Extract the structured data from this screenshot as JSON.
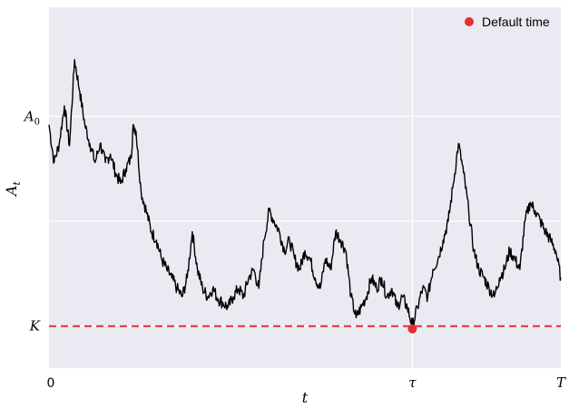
{
  "chart_data": {
    "type": "line",
    "xlabel": "t",
    "ylabel_main": "A",
    "ylabel_sub": "t",
    "x_ticks": [
      {
        "label": "0",
        "value": 0.0
      },
      {
        "label": "τ",
        "value": 0.71
      },
      {
        "label": "T",
        "value": 1.0
      }
    ],
    "y_ticks": [
      {
        "label_main": "A",
        "label_sub": "0",
        "value": 1.0
      },
      {
        "label_main": "K",
        "label_sub": "",
        "value": 0.0
      }
    ],
    "xlim": [
      0.0,
      1.0
    ],
    "ylim": [
      -0.2,
      1.52
    ],
    "grid": true,
    "legend_placement": "top-right",
    "threshold": {
      "value": 0.0,
      "color": "#e03030",
      "style": "dashed"
    },
    "default_point": {
      "x": 0.71,
      "y": 0.0,
      "color": "#e03030"
    },
    "legend": [
      {
        "label": "Default time",
        "color": "#e03030"
      }
    ],
    "series": [
      {
        "color": "#000000",
        "points": [
          [
            0.0,
            0.96
          ],
          [
            0.01,
            0.78
          ],
          [
            0.02,
            0.87
          ],
          [
            0.03,
            1.05
          ],
          [
            0.04,
            0.86
          ],
          [
            0.05,
            1.27
          ],
          [
            0.06,
            1.12
          ],
          [
            0.07,
            0.96
          ],
          [
            0.08,
            0.87
          ],
          [
            0.09,
            0.78
          ],
          [
            0.1,
            0.87
          ],
          [
            0.11,
            0.78
          ],
          [
            0.12,
            0.82
          ],
          [
            0.13,
            0.73
          ],
          [
            0.14,
            0.68
          ],
          [
            0.15,
            0.75
          ],
          [
            0.16,
            0.8
          ],
          [
            0.165,
            0.96
          ],
          [
            0.17,
            0.93
          ],
          [
            0.18,
            0.64
          ],
          [
            0.19,
            0.55
          ],
          [
            0.2,
            0.45
          ],
          [
            0.21,
            0.41
          ],
          [
            0.22,
            0.32
          ],
          [
            0.23,
            0.27
          ],
          [
            0.24,
            0.23
          ],
          [
            0.25,
            0.18
          ],
          [
            0.26,
            0.14
          ],
          [
            0.27,
            0.23
          ],
          [
            0.28,
            0.45
          ],
          [
            0.29,
            0.27
          ],
          [
            0.3,
            0.18
          ],
          [
            0.31,
            0.14
          ],
          [
            0.32,
            0.18
          ],
          [
            0.33,
            0.13
          ],
          [
            0.34,
            0.11
          ],
          [
            0.35,
            0.09
          ],
          [
            0.36,
            0.14
          ],
          [
            0.37,
            0.18
          ],
          [
            0.38,
            0.14
          ],
          [
            0.39,
            0.23
          ],
          [
            0.4,
            0.27
          ],
          [
            0.41,
            0.18
          ],
          [
            0.42,
            0.41
          ],
          [
            0.43,
            0.55
          ],
          [
            0.44,
            0.5
          ],
          [
            0.45,
            0.45
          ],
          [
            0.46,
            0.36
          ],
          [
            0.47,
            0.41
          ],
          [
            0.48,
            0.32
          ],
          [
            0.49,
            0.27
          ],
          [
            0.5,
            0.36
          ],
          [
            0.51,
            0.32
          ],
          [
            0.52,
            0.23
          ],
          [
            0.53,
            0.18
          ],
          [
            0.54,
            0.32
          ],
          [
            0.55,
            0.27
          ],
          [
            0.56,
            0.45
          ],
          [
            0.57,
            0.41
          ],
          [
            0.58,
            0.36
          ],
          [
            0.59,
            0.14
          ],
          [
            0.6,
            0.04
          ],
          [
            0.61,
            0.09
          ],
          [
            0.62,
            0.14
          ],
          [
            0.63,
            0.23
          ],
          [
            0.64,
            0.18
          ],
          [
            0.65,
            0.23
          ],
          [
            0.66,
            0.14
          ],
          [
            0.67,
            0.18
          ],
          [
            0.68,
            0.09
          ],
          [
            0.69,
            0.14
          ],
          [
            0.7,
            0.09
          ],
          [
            0.71,
            0.0
          ],
          [
            0.72,
            0.09
          ],
          [
            0.73,
            0.18
          ],
          [
            0.74,
            0.14
          ],
          [
            0.75,
            0.27
          ],
          [
            0.76,
            0.32
          ],
          [
            0.77,
            0.41
          ],
          [
            0.78,
            0.5
          ],
          [
            0.79,
            0.68
          ],
          [
            0.8,
            0.87
          ],
          [
            0.81,
            0.73
          ],
          [
            0.82,
            0.55
          ],
          [
            0.83,
            0.36
          ],
          [
            0.84,
            0.27
          ],
          [
            0.85,
            0.23
          ],
          [
            0.86,
            0.18
          ],
          [
            0.87,
            0.14
          ],
          [
            0.88,
            0.23
          ],
          [
            0.89,
            0.27
          ],
          [
            0.9,
            0.36
          ],
          [
            0.91,
            0.32
          ],
          [
            0.92,
            0.27
          ],
          [
            0.93,
            0.5
          ],
          [
            0.94,
            0.59
          ],
          [
            0.95,
            0.55
          ],
          [
            0.96,
            0.5
          ],
          [
            0.97,
            0.45
          ],
          [
            0.98,
            0.41
          ],
          [
            0.99,
            0.36
          ],
          [
            1.0,
            0.23
          ]
        ]
      }
    ]
  }
}
